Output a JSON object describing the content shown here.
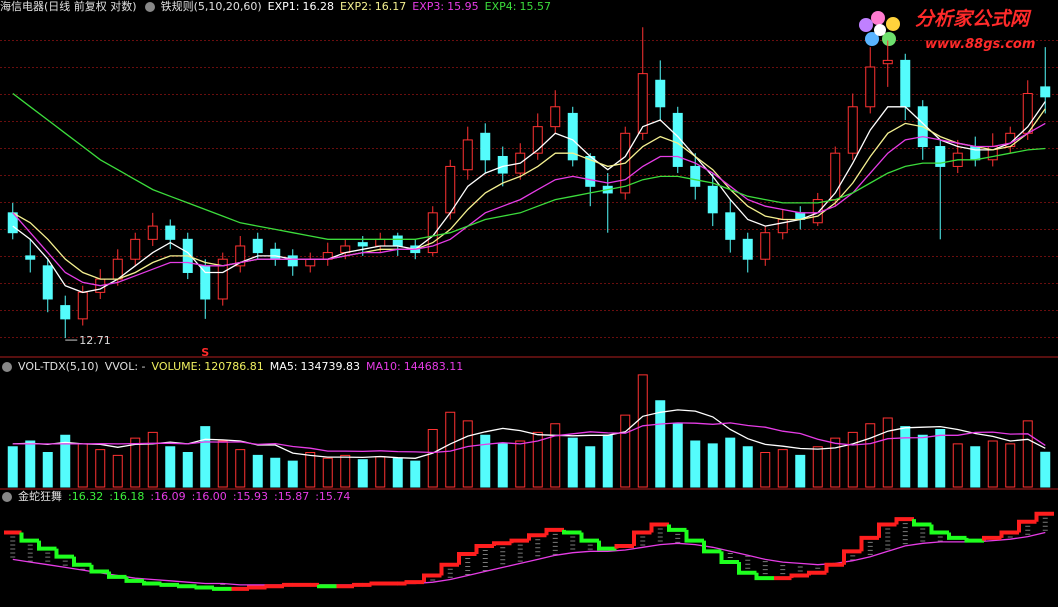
{
  "watermark": {
    "title": "分析家公式网",
    "url": "www.88gs.com"
  },
  "chart_data": [
    {
      "type": "candlestick",
      "title": "海信电器(日线 前复权 对数)",
      "indicator": "铁规则(5,10,20,60)",
      "signal": "S",
      "up_color": "#ff3232",
      "down_color": "#54fcfc",
      "ylim": [
        12.5,
        17.6
      ],
      "open": [
        14.6,
        13.95,
        13.8,
        13.2,
        13.0,
        13.4,
        13.6,
        13.9,
        14.2,
        14.4,
        14.2,
        13.8,
        13.3,
        13.8,
        14.2,
        14.05,
        13.95,
        13.8,
        13.9,
        14.0,
        14.15,
        14.1,
        14.25,
        14.1,
        14.0,
        14.6,
        15.25,
        15.8,
        15.45,
        15.2,
        15.5,
        15.9,
        16.1,
        15.45,
        15.0,
        14.9,
        15.8,
        16.6,
        16.1,
        15.3,
        15.0,
        14.6,
        14.2,
        13.9,
        14.3,
        14.6,
        14.45,
        14.8,
        15.5,
        16.2,
        16.85,
        16.9,
        16.2,
        15.6,
        15.3,
        15.6,
        15.4,
        15.6,
        15.8,
        16.5
      ],
      "high": [
        14.75,
        14.2,
        13.9,
        13.35,
        13.5,
        13.75,
        14.05,
        14.3,
        14.6,
        14.5,
        14.3,
        13.9,
        14.0,
        14.25,
        14.3,
        14.15,
        14.05,
        14.0,
        14.15,
        14.2,
        14.25,
        14.3,
        14.3,
        14.2,
        14.7,
        15.4,
        15.9,
        15.95,
        15.6,
        15.65,
        16.1,
        16.45,
        16.2,
        15.5,
        15.2,
        15.9,
        17.4,
        16.9,
        16.2,
        15.5,
        15.2,
        14.8,
        14.3,
        14.4,
        14.65,
        14.7,
        14.9,
        15.6,
        16.4,
        17.1,
        17.2,
        17.0,
        16.3,
        15.7,
        15.7,
        15.75,
        15.8,
        15.9,
        16.6,
        17.1
      ],
      "low": [
        14.2,
        13.7,
        13.1,
        12.71,
        12.9,
        13.3,
        13.5,
        13.8,
        14.1,
        14.05,
        13.6,
        13.0,
        13.2,
        13.7,
        13.9,
        13.8,
        13.65,
        13.7,
        13.8,
        13.9,
        13.95,
        14.0,
        13.95,
        13.9,
        13.95,
        14.5,
        15.1,
        15.2,
        15.0,
        15.1,
        15.4,
        15.8,
        15.3,
        14.7,
        14.3,
        14.8,
        15.7,
        16.0,
        15.2,
        14.8,
        14.4,
        14.0,
        13.7,
        13.8,
        14.2,
        14.35,
        14.4,
        14.7,
        15.4,
        16.1,
        16.5,
        16.0,
        15.4,
        14.2,
        15.2,
        15.3,
        15.3,
        15.5,
        15.7,
        16.1
      ],
      "close": [
        14.3,
        13.9,
        13.3,
        13.0,
        13.4,
        13.6,
        13.9,
        14.2,
        14.4,
        14.2,
        13.7,
        13.3,
        13.9,
        14.1,
        14.0,
        13.9,
        13.8,
        13.9,
        14.0,
        14.1,
        14.1,
        14.2,
        14.1,
        14.0,
        14.6,
        15.3,
        15.7,
        15.4,
        15.2,
        15.5,
        15.9,
        16.2,
        15.4,
        15.0,
        14.9,
        15.8,
        16.7,
        16.2,
        15.3,
        15.0,
        14.6,
        14.2,
        13.9,
        14.3,
        14.5,
        14.5,
        14.8,
        15.5,
        16.2,
        16.8,
        16.9,
        16.2,
        15.6,
        15.3,
        15.5,
        15.4,
        15.6,
        15.8,
        16.4,
        16.35
      ],
      "series": [
        {
          "name": "EXP1:",
          "color": "#ffffff",
          "values": [
            14.4,
            14.2,
            13.9,
            13.5,
            13.4,
            13.45,
            13.6,
            13.8,
            14.0,
            14.15,
            14.0,
            13.7,
            13.7,
            13.85,
            13.95,
            13.95,
            13.9,
            13.9,
            13.9,
            14.0,
            14.05,
            14.1,
            14.1,
            14.05,
            14.25,
            14.6,
            15.0,
            15.2,
            15.3,
            15.35,
            15.55,
            15.8,
            15.7,
            15.45,
            15.25,
            15.45,
            15.9,
            16.0,
            15.75,
            15.45,
            15.15,
            14.8,
            14.5,
            14.4,
            14.45,
            14.5,
            14.6,
            14.9,
            15.35,
            15.85,
            16.2,
            16.2,
            15.95,
            15.7,
            15.6,
            15.55,
            15.55,
            15.65,
            15.9,
            16.28
          ]
        },
        {
          "name": "EXP2:",
          "color": "#f4f090",
          "values": [
            14.6,
            14.45,
            14.2,
            13.9,
            13.7,
            13.6,
            13.6,
            13.7,
            13.85,
            13.95,
            13.95,
            13.85,
            13.8,
            13.85,
            13.9,
            13.9,
            13.9,
            13.9,
            13.9,
            13.95,
            14.0,
            14.05,
            14.05,
            14.05,
            14.15,
            14.35,
            14.65,
            14.9,
            15.05,
            15.15,
            15.3,
            15.5,
            15.5,
            15.4,
            15.3,
            15.35,
            15.6,
            15.75,
            15.65,
            15.45,
            15.25,
            14.95,
            14.7,
            14.55,
            14.5,
            14.5,
            14.55,
            14.75,
            15.05,
            15.45,
            15.8,
            15.95,
            15.9,
            15.75,
            15.65,
            15.6,
            15.55,
            15.6,
            15.8,
            16.17
          ]
        },
        {
          "name": "EXP3:",
          "color": "#e63ce6",
          "values": [
            14.6,
            14.3,
            14.0,
            13.7,
            13.55,
            13.5,
            13.55,
            13.65,
            13.75,
            13.85,
            13.85,
            13.8,
            13.8,
            13.85,
            13.9,
            13.9,
            13.9,
            13.9,
            13.9,
            13.95,
            14.0,
            14.0,
            14.05,
            14.05,
            14.1,
            14.2,
            14.4,
            14.6,
            14.7,
            14.8,
            14.95,
            15.1,
            15.15,
            15.1,
            15.05,
            15.1,
            15.3,
            15.45,
            15.45,
            15.35,
            15.2,
            15.0,
            14.8,
            14.7,
            14.65,
            14.6,
            14.6,
            14.7,
            14.9,
            15.2,
            15.5,
            15.7,
            15.75,
            15.7,
            15.65,
            15.6,
            15.6,
            15.65,
            15.8,
            15.95
          ]
        },
        {
          "name": "EXP4:",
          "color": "#3cdc3c",
          "values": [
            16.4,
            16.2,
            16.0,
            15.8,
            15.6,
            15.4,
            15.25,
            15.1,
            14.95,
            14.85,
            14.75,
            14.65,
            14.55,
            14.45,
            14.4,
            14.35,
            14.3,
            14.25,
            14.2,
            14.2,
            14.2,
            14.2,
            14.2,
            14.2,
            14.25,
            14.3,
            14.4,
            14.5,
            14.55,
            14.6,
            14.7,
            14.8,
            14.85,
            14.9,
            14.95,
            15.0,
            15.1,
            15.15,
            15.15,
            15.1,
            15.05,
            14.95,
            14.85,
            14.8,
            14.75,
            14.75,
            14.75,
            14.8,
            14.9,
            15.05,
            15.2,
            15.3,
            15.35,
            15.35,
            15.4,
            15.4,
            15.45,
            15.5,
            15.55,
            15.57
          ]
        }
      ]
    },
    {
      "type": "bar",
      "indicator": "VOL-TDX(5,10)",
      "note": "VVOL: -",
      "ylim": [
        0,
        400000
      ],
      "series": [
        {
          "name": "VOLUME:",
          "color": "#f0f060",
          "values": [
            140000,
            160000,
            120000,
            180000,
            150000,
            130000,
            110000,
            170000,
            190000,
            140000,
            120000,
            210000,
            160000,
            130000,
            110000,
            100000,
            90000,
            120000,
            100000,
            110000,
            95000,
            105000,
            100000,
            90000,
            200000,
            260000,
            230000,
            180000,
            150000,
            160000,
            190000,
            220000,
            170000,
            140000,
            180000,
            250000,
            390000,
            300000,
            220000,
            160000,
            150000,
            170000,
            140000,
            120000,
            130000,
            110000,
            140000,
            170000,
            190000,
            220000,
            240000,
            210000,
            180000,
            200000,
            150000,
            140000,
            160000,
            150000,
            230000,
            120786.81
          ]
        },
        {
          "name": "MA5:",
          "color": "#ffffff",
          "values": [
            150000,
            152000,
            148000,
            155000,
            150000,
            148000,
            138000,
            148000,
            150000,
            156000,
            150000,
            166000,
            164000,
            160000,
            146000,
            146000,
            118000,
            110000,
            104000,
            104000,
            103000,
            106000,
            102000,
            100000,
            118000,
            150000,
            177000,
            192000,
            204000,
            196000,
            182000,
            180000,
            178000,
            180000,
            180000,
            192000,
            246000,
            260000,
            268000,
            264000,
            244000,
            200000,
            168000,
            148000,
            142000,
            134000,
            132000,
            136000,
            150000,
            170000,
            194000,
            206000,
            208000,
            210000,
            200000,
            186000,
            176000,
            160000,
            166000,
            134739.83
          ]
        },
        {
          "name": "MA10:",
          "color": "#e63ce6",
          "values": [
            150000,
            150000,
            150000,
            150000,
            150000,
            151000,
            150000,
            151000,
            152000,
            152000,
            150000,
            157000,
            156000,
            157000,
            148000,
            151000,
            141000,
            135000,
            125000,
            125000,
            124000,
            126000,
            123000,
            122000,
            120000,
            125000,
            141000,
            148000,
            154000,
            150000,
            160000,
            178000,
            185000,
            192000,
            188000,
            187000,
            213000,
            219000,
            223000,
            222000,
            218000,
            223000,
            214000,
            208000,
            194000,
            186000,
            166000,
            152000,
            146000,
            151000,
            168000,
            171000,
            172000,
            180000,
            180000,
            190000,
            191000,
            184000,
            185000,
            144683.11
          ]
        }
      ]
    },
    {
      "type": "step",
      "title": "金蛇狂舞",
      "ylim": [
        13.2,
        17.0
      ],
      "readouts": [
        {
          "label": ":16.32",
          "color": "#3cf03c"
        },
        {
          "label": ":16.18",
          "color": "#3cf03c"
        },
        {
          "label": ":16.09",
          "color": "#e63ce6"
        },
        {
          "label": ":16.00",
          "color": "#e63ce6"
        },
        {
          "label": ":15.93",
          "color": "#e63ce6"
        },
        {
          "label": ":15.87",
          "color": "#e63ce6"
        },
        {
          "label": ":15.74",
          "color": "#e63ce6"
        }
      ],
      "series": [
        {
          "up_color": "#ff1e1e",
          "down_color": "#1eff1e",
          "values": [
            15.9,
            15.6,
            15.3,
            15.0,
            14.7,
            14.45,
            14.25,
            14.1,
            14.0,
            13.95,
            13.9,
            13.85,
            13.8,
            13.8,
            13.85,
            13.9,
            13.95,
            13.95,
            13.9,
            13.9,
            13.95,
            14.0,
            14.0,
            14.05,
            14.3,
            14.7,
            15.1,
            15.4,
            15.5,
            15.6,
            15.8,
            16.0,
            15.9,
            15.6,
            15.3,
            15.4,
            15.9,
            16.2,
            16.0,
            15.6,
            15.2,
            14.8,
            14.4,
            14.2,
            14.2,
            14.3,
            14.4,
            14.7,
            15.2,
            15.7,
            16.2,
            16.4,
            16.2,
            15.9,
            15.7,
            15.6,
            15.7,
            15.9,
            16.3,
            16.6
          ]
        },
        {
          "color": "#e63ce6",
          "values": [
            14.9,
            14.8,
            14.7,
            14.6,
            14.5,
            14.4,
            14.3,
            14.2,
            14.15,
            14.1,
            14.05,
            14.0,
            14.0,
            13.95,
            13.95,
            13.95,
            13.95,
            13.95,
            13.95,
            13.95,
            13.95,
            13.95,
            14.0,
            14.0,
            14.05,
            14.15,
            14.3,
            14.45,
            14.6,
            14.75,
            14.9,
            15.05,
            15.15,
            15.2,
            15.2,
            15.25,
            15.35,
            15.45,
            15.5,
            15.45,
            15.35,
            15.2,
            15.05,
            14.9,
            14.8,
            14.75,
            14.7,
            14.75,
            14.85,
            15.0,
            15.2,
            15.4,
            15.5,
            15.55,
            15.55,
            15.55,
            15.6,
            15.65,
            15.75,
            15.9
          ]
        }
      ]
    }
  ]
}
